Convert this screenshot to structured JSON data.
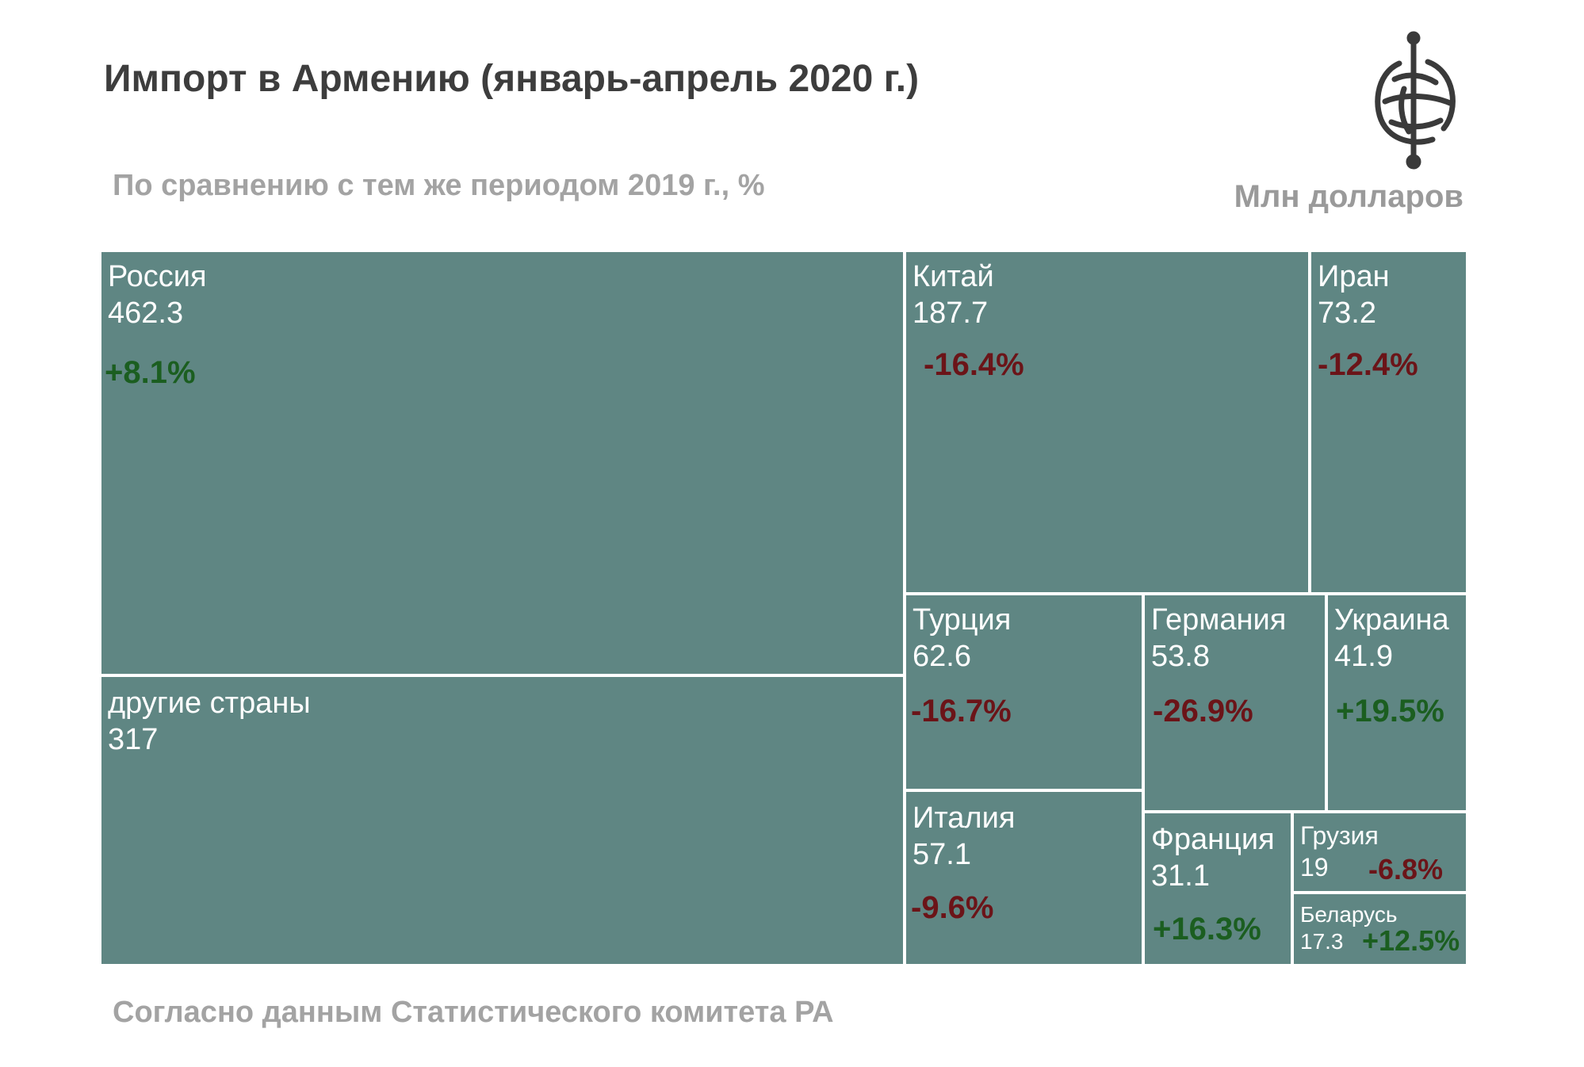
{
  "header": {
    "title": "Импорт в Армению (январь-апрель 2020 г.)",
    "subtitle": "По сравнению с тем же периодом 2019 г., %",
    "unit": "Млн долларов"
  },
  "footer": {
    "source": "Согласно данным Статистического комитета РА"
  },
  "logo": {
    "icon": "globe-emblem-icon"
  },
  "colors": {
    "tile": "#5f8683",
    "positive": "#1b5e20",
    "negative": "#6b1418",
    "border": "#ffffff"
  },
  "chart_data": {
    "type": "treemap",
    "title": "Импорт в Армению (январь-апрель 2020 г.)",
    "subtitle": "По сравнению с тем же периодом 2019 г., %",
    "unit": "Млн долларов",
    "items": [
      {
        "name": "Россия",
        "value": 462.3,
        "value_label": "462.3",
        "change": "+8.1%"
      },
      {
        "name": "другие страны",
        "value": 317,
        "value_label": "317",
        "change": ""
      },
      {
        "name": "Китай",
        "value": 187.7,
        "value_label": "187.7",
        "change": "-16.4%"
      },
      {
        "name": "Иран",
        "value": 73.2,
        "value_label": "73.2",
        "change": "-12.4%"
      },
      {
        "name": "Турция",
        "value": 62.6,
        "value_label": "62.6",
        "change": "-16.7%"
      },
      {
        "name": "Италия",
        "value": 57.1,
        "value_label": "57.1",
        "change": "-9.6%"
      },
      {
        "name": "Германия",
        "value": 53.8,
        "value_label": "53.8",
        "change": "-26.9%"
      },
      {
        "name": "Украина",
        "value": 41.9,
        "value_label": "41.9",
        "change": "+19.5%"
      },
      {
        "name": "Франция",
        "value": 31.1,
        "value_label": "31.1",
        "change": "+16.3%"
      },
      {
        "name": "Грузия",
        "value": 19,
        "value_label": "19",
        "change": "-6.8%"
      },
      {
        "name": "Беларусь",
        "value": 17.3,
        "value_label": "17.3",
        "change": "+12.5%"
      }
    ]
  }
}
